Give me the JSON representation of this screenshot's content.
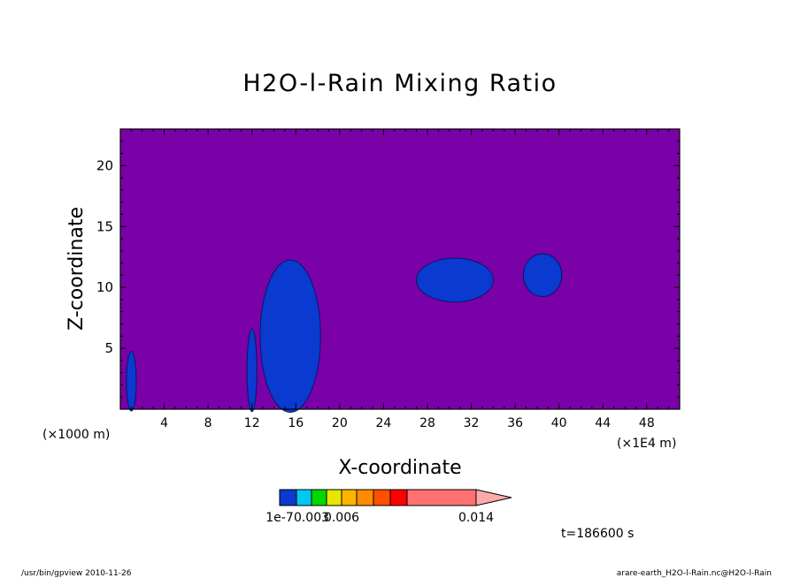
{
  "chart_data": {
    "type": "contour",
    "title": "H2O-l-Rain Mixing Ratio",
    "xlabel": "X-coordinate",
    "ylabel": "Z-coordinate",
    "x_unit_left": "(×1000 m)",
    "x_unit_right": "(×1E4 m)",
    "xlim": [
      0,
      51
    ],
    "ylim": [
      0,
      23
    ],
    "x_ticks": [
      4,
      8,
      12,
      16,
      20,
      24,
      28,
      32,
      36,
      40,
      44,
      48
    ],
    "y_ticks": [
      5,
      10,
      15,
      20
    ],
    "background_color": "#7a00a8",
    "regions": [
      {
        "name": "cell-x1",
        "level": "1e-7",
        "color": "#0a3ad0",
        "center_x": 1.0,
        "center_z": 2.3,
        "width": 0.9,
        "height": 4.9
      },
      {
        "name": "cell-x12",
        "level": "1e-7",
        "color": "#0a3ad0",
        "center_x": 12.0,
        "center_z": 3.2,
        "width": 0.9,
        "height": 6.8
      },
      {
        "name": "cell-x15",
        "level": "1e-7",
        "color": "#0a3ad0",
        "center_x": 15.5,
        "center_z": 6.0,
        "width": 5.5,
        "height": 12.5
      },
      {
        "name": "cell-x30",
        "level": "1e-7",
        "color": "#0a3ad0",
        "center_x": 30.5,
        "center_z": 10.6,
        "width": 7.0,
        "height": 3.6
      },
      {
        "name": "cell-x38",
        "level": "1e-7",
        "color": "#0a3ad0",
        "center_x": 38.5,
        "center_z": 11.0,
        "width": 3.5,
        "height": 3.5
      }
    ],
    "colorbar": {
      "colors": [
        "#0a3ad0",
        "#00c8f0",
        "#00d800",
        "#e6e600",
        "#ffb400",
        "#ff8c00",
        "#ff5000",
        "#ff0000",
        "#ff7070",
        "#ffaaaa"
      ],
      "tick_labels": [
        "1e-7",
        "0.003",
        "0.006",
        "0.014"
      ]
    },
    "time_label": "t=186600 s"
  },
  "footer": {
    "left": "/usr/bin/gpview  2010-11-26",
    "right": "arare-earth_H2O-l-Rain.nc@H2O-l-Rain"
  }
}
